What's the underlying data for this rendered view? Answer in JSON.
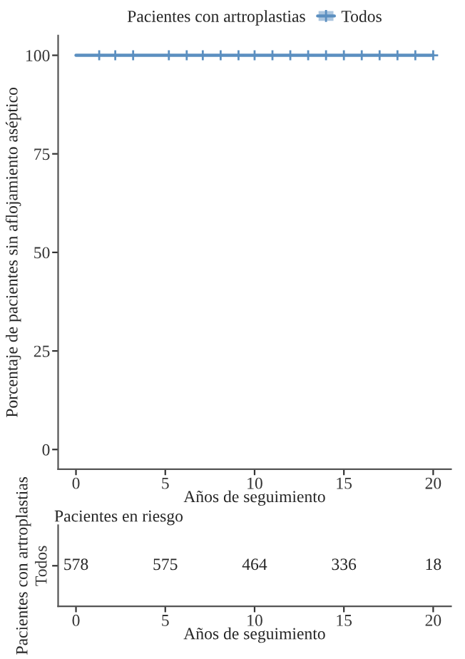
{
  "chart_data": [
    {
      "type": "line",
      "ylabel": "Porcentaje de pacientes sin aflojamiento aséptico",
      "xlabel": "Años de seguimiento",
      "legend_title": "Pacientes con artroplastias",
      "legend": "top",
      "marker": "cross",
      "xlim": [
        -1,
        21
      ],
      "xticks": [
        0,
        5,
        10,
        15,
        20
      ],
      "ylim": [
        -5,
        105
      ],
      "yticks": [
        0,
        25,
        50,
        75,
        100
      ],
      "grid": false,
      "series": [
        {
          "name": "Todos",
          "color": "#5b8fc0",
          "type": "step",
          "x": [
            0,
            1.3,
            2.2,
            3.2,
            5.2,
            6.2,
            7.1,
            8.1,
            9.1,
            10,
            11,
            12,
            13,
            14,
            15,
            16,
            17,
            18,
            19,
            20
          ],
          "values": [
            100,
            100,
            100,
            100,
            100,
            100,
            100,
            100,
            100,
            100,
            100,
            100,
            100,
            100,
            100,
            100,
            100,
            100,
            100,
            100
          ]
        }
      ]
    },
    {
      "type": "heatmap",
      "title": "Pacientes en riesgo",
      "xlabel": "Años de seguimiento",
      "ylabel": "Pacientes con artroplastias",
      "categories": [
        "0",
        "5",
        "10",
        "15",
        "20"
      ],
      "y_categories": [
        "Todos"
      ],
      "cells": [
        [
          578,
          575,
          464,
          336,
          18
        ]
      ],
      "data_labels": true
    }
  ]
}
